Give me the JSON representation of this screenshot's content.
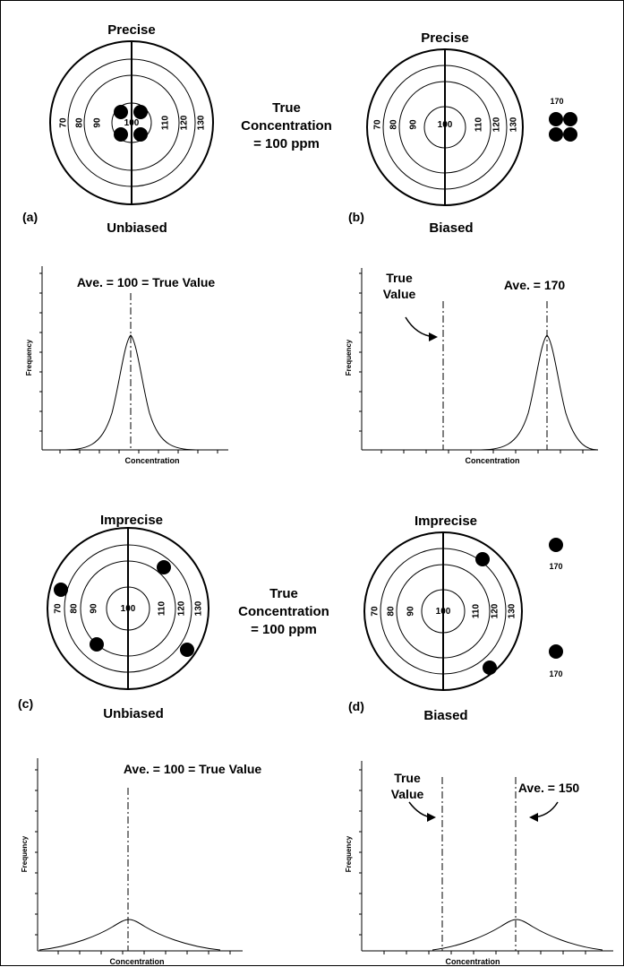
{
  "panels": {
    "a": {
      "tag": "(a)",
      "precision": "Precise",
      "bias": "Unbiased",
      "center_label": "100",
      "rings": [
        "70",
        "80",
        "90",
        "110",
        "120",
        "130"
      ],
      "side_text": [
        "True",
        "Concentration",
        "= 100 ppm"
      ],
      "hits": [
        {
          "x": 94,
          "y": 97
        },
        {
          "x": 106,
          "y": 97
        },
        {
          "x": 94,
          "y": 103
        },
        {
          "x": 106,
          "y": 103
        }
      ],
      "offscale_hits": []
    },
    "b": {
      "tag": "(b)",
      "precision": "Precise",
      "bias": "Biased",
      "center_label": "100",
      "rings": [
        "70",
        "80",
        "90",
        "110",
        "120",
        "130"
      ],
      "hits": [],
      "offscale_hits": [
        {
          "value": "170",
          "count": 4
        }
      ]
    },
    "c": {
      "tag": "(c)",
      "precision": "Imprecise",
      "bias": "Unbiased",
      "center_label": "100",
      "rings": [
        "70",
        "80",
        "90",
        "110",
        "120",
        "130"
      ],
      "side_text": [
        "True",
        "Concentration",
        "= 100 ppm"
      ],
      "hits": [
        {
          "x": 68,
          "y": 104
        },
        {
          "x": 118,
          "y": 109
        },
        {
          "x": 91,
          "y": 83
        },
        {
          "x": 130,
          "y": 82
        }
      ],
      "offscale_hits": []
    },
    "d": {
      "tag": "(d)",
      "precision": "Imprecise",
      "bias": "Biased",
      "center_label": "100",
      "rings": [
        "70",
        "80",
        "90",
        "110",
        "120",
        "130"
      ],
      "hits": [
        {
          "x": 118,
          "y": 111
        },
        {
          "x": 127,
          "y": 80
        }
      ],
      "offscale_hits": [
        {
          "value": "170"
        },
        {
          "value": "170"
        }
      ]
    }
  },
  "chart_data": [
    {
      "type": "line",
      "panel": "a",
      "xlabel": "Concentration",
      "ylabel": "Frequency",
      "mean": 100,
      "spread": "narrow",
      "annotations": [
        "Ave. = 100 = True Value"
      ]
    },
    {
      "type": "line",
      "panel": "b",
      "xlabel": "Concentration",
      "ylabel": "Frequency",
      "mean": 170,
      "true_value": 100,
      "spread": "narrow",
      "annotations": [
        "True",
        "Value",
        "Ave. = 170"
      ]
    },
    {
      "type": "line",
      "panel": "c",
      "xlabel": "Concentration",
      "ylabel": "Frequency",
      "mean": 100,
      "spread": "wide",
      "annotations": [
        "Ave. = 100 = True Value"
      ]
    },
    {
      "type": "line",
      "panel": "d",
      "xlabel": "Concentration",
      "ylabel": "Frequency",
      "mean": 150,
      "true_value": 100,
      "spread": "wide",
      "annotations": [
        "True",
        "Value",
        "Ave. = 150"
      ]
    }
  ]
}
